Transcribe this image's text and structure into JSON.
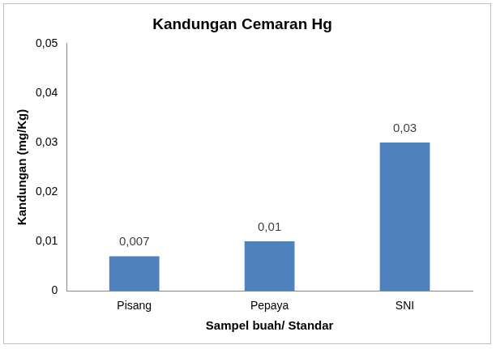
{
  "chart_data": {
    "type": "bar",
    "title": "Kandungan Cemaran Hg",
    "x_label": "Sampel buah/ Standar",
    "y_label": "Kandungan (mg/Kg)",
    "categories": [
      "Pisang",
      "Pepaya",
      "SNI"
    ],
    "values": [
      0.007,
      0.01,
      0.03
    ],
    "value_labels": [
      "0,007",
      "0,01",
      "0,03"
    ],
    "color": "#4f81bd",
    "ylim": [
      0,
      0.05
    ],
    "yticks": [
      0,
      {
        "value": 0.01,
        "label": "0,01"
      },
      {
        "value": 0.02,
        "label": "0,02"
      },
      {
        "value": 0.03,
        "label": "0,03"
      },
      {
        "value": 0.04,
        "label": "0,04"
      },
      {
        "value": 0.05,
        "label": "0,05"
      }
    ],
    "grid": false,
    "data_labels": true
  }
}
